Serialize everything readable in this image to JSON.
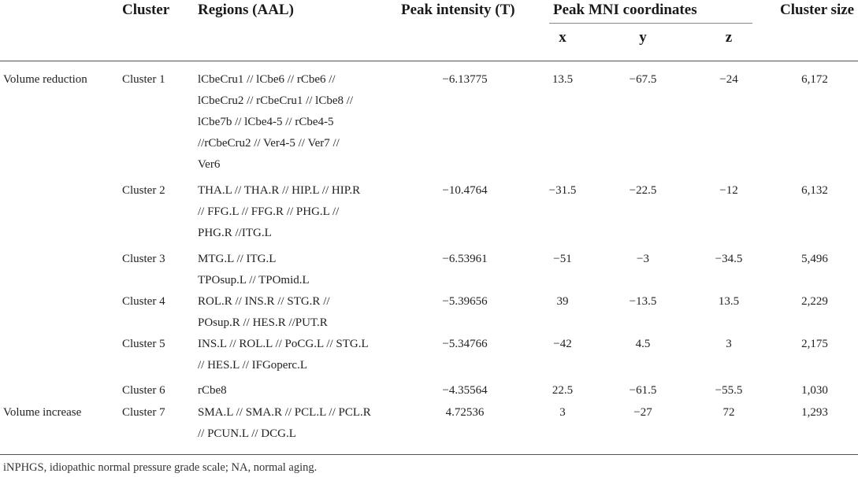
{
  "headers": {
    "cluster": "Cluster",
    "regions": "Regions (AAL)",
    "peak_intensity": "Peak intensity (T)",
    "peak_mni": "Peak MNI coordinates",
    "x": "x",
    "y": "y",
    "z": "z",
    "cluster_size": "Cluster size"
  },
  "groups": [
    {
      "label": "Volume reduction"
    },
    {
      "label": "Volume increase"
    }
  ],
  "rows": [
    {
      "cluster": "Cluster 1",
      "regions": [
        "lCbeCru1 // lCbe6 // rCbe6 //",
        "lCbeCru2 // rCbeCru1 // lCbe8 //",
        "lCbe7b // lCbe4-5 // rCbe4-5",
        "//rCbeCru2 // Ver4-5 // Ver7 //",
        "Ver6"
      ],
      "peak": "−6.13775",
      "x": "13.5",
      "y": "−67.5",
      "z": "−24",
      "size": "6,172"
    },
    {
      "cluster": "Cluster 2",
      "regions": [
        "THA.L // THA.R // HIP.L // HIP.R",
        "// FFG.L // FFG.R // PHG.L //",
        "PHG.R //ITG.L"
      ],
      "peak": "−10.4764",
      "x": "−31.5",
      "y": "−22.5",
      "z": "−12",
      "size": "6,132"
    },
    {
      "cluster": "Cluster 3",
      "regions": [
        "MTG.L // ITG.L",
        "TPOsup.L // TPOmid.L"
      ],
      "peak": "−6.53961",
      "x": "−51",
      "y": "−3",
      "z": "−34.5",
      "size": "5,496"
    },
    {
      "cluster": "Cluster 4",
      "regions": [
        "ROL.R // INS.R // STG.R //",
        "POsup.R // HES.R //PUT.R"
      ],
      "peak": "−5.39656",
      "x": "39",
      "y": "−13.5",
      "z": "13.5",
      "size": "2,229"
    },
    {
      "cluster": "Cluster 5",
      "regions": [
        "INS.L // ROL.L // PoCG.L // STG.L",
        "// HES.L // IFGoperc.L"
      ],
      "peak": "−5.34766",
      "x": "−42",
      "y": "4.5",
      "z": "3",
      "size": "2,175"
    },
    {
      "cluster": "Cluster 6",
      "regions": [
        "rCbe8"
      ],
      "peak": "−4.35564",
      "x": "22.5",
      "y": "−61.5",
      "z": "−55.5",
      "size": "1,030"
    },
    {
      "cluster": "Cluster 7",
      "regions": [
        "SMA.L // SMA.R // PCL.L // PCL.R",
        "// PCUN.L // DCG.L"
      ],
      "peak": "4.72536",
      "x": "3",
      "y": "−27",
      "z": "72",
      "size": "1,293"
    }
  ],
  "footnote": "iNPHGS, idiopathic normal pressure grade scale; NA, normal aging."
}
